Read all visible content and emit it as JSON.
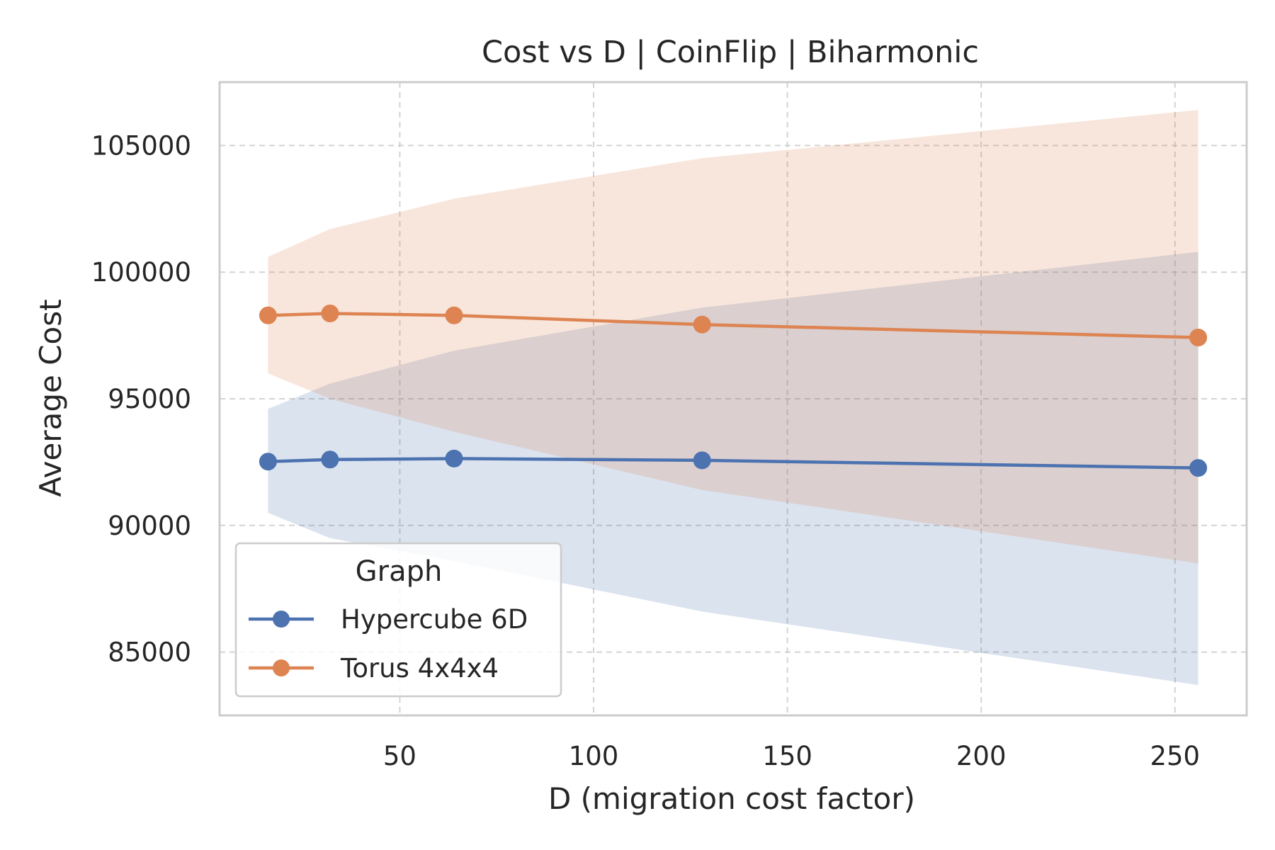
{
  "chart_data": {
    "type": "line",
    "title": "Cost vs D  |  CoinFlip  |  Biharmonic",
    "xlabel": "D (migration cost factor)",
    "ylabel": "Average Cost",
    "x": [
      16,
      32,
      64,
      128,
      256
    ],
    "xlim": [
      3.5,
      268.5
    ],
    "ylim": [
      82500,
      107500
    ],
    "xticks": [
      50,
      100,
      150,
      200,
      250
    ],
    "xtick_labels": [
      "50",
      "100",
      "150",
      "200",
      "250"
    ],
    "yticks": [
      85000,
      90000,
      95000,
      100000,
      105000
    ],
    "ytick_labels": [
      "85000",
      "90000",
      "95000",
      "100000",
      "105000"
    ],
    "grid": true,
    "legend": {
      "title": "Graph",
      "placement": "lower-left"
    },
    "series": [
      {
        "name": "Hypercube 6D",
        "color": "#4c72b0",
        "values": [
          92520,
          92600,
          92640,
          92570,
          92270
        ],
        "lower": [
          90500,
          89500,
          88600,
          86600,
          83700
        ],
        "upper": [
          94600,
          95600,
          96900,
          98600,
          100800
        ]
      },
      {
        "name": "Torus 4x4x4",
        "color": "#dd8452",
        "values": [
          98290,
          98370,
          98290,
          97930,
          97420
        ],
        "lower": [
          96000,
          95000,
          93700,
          91400,
          88500
        ],
        "upper": [
          100600,
          101700,
          102900,
          104500,
          106400
        ]
      }
    ]
  }
}
